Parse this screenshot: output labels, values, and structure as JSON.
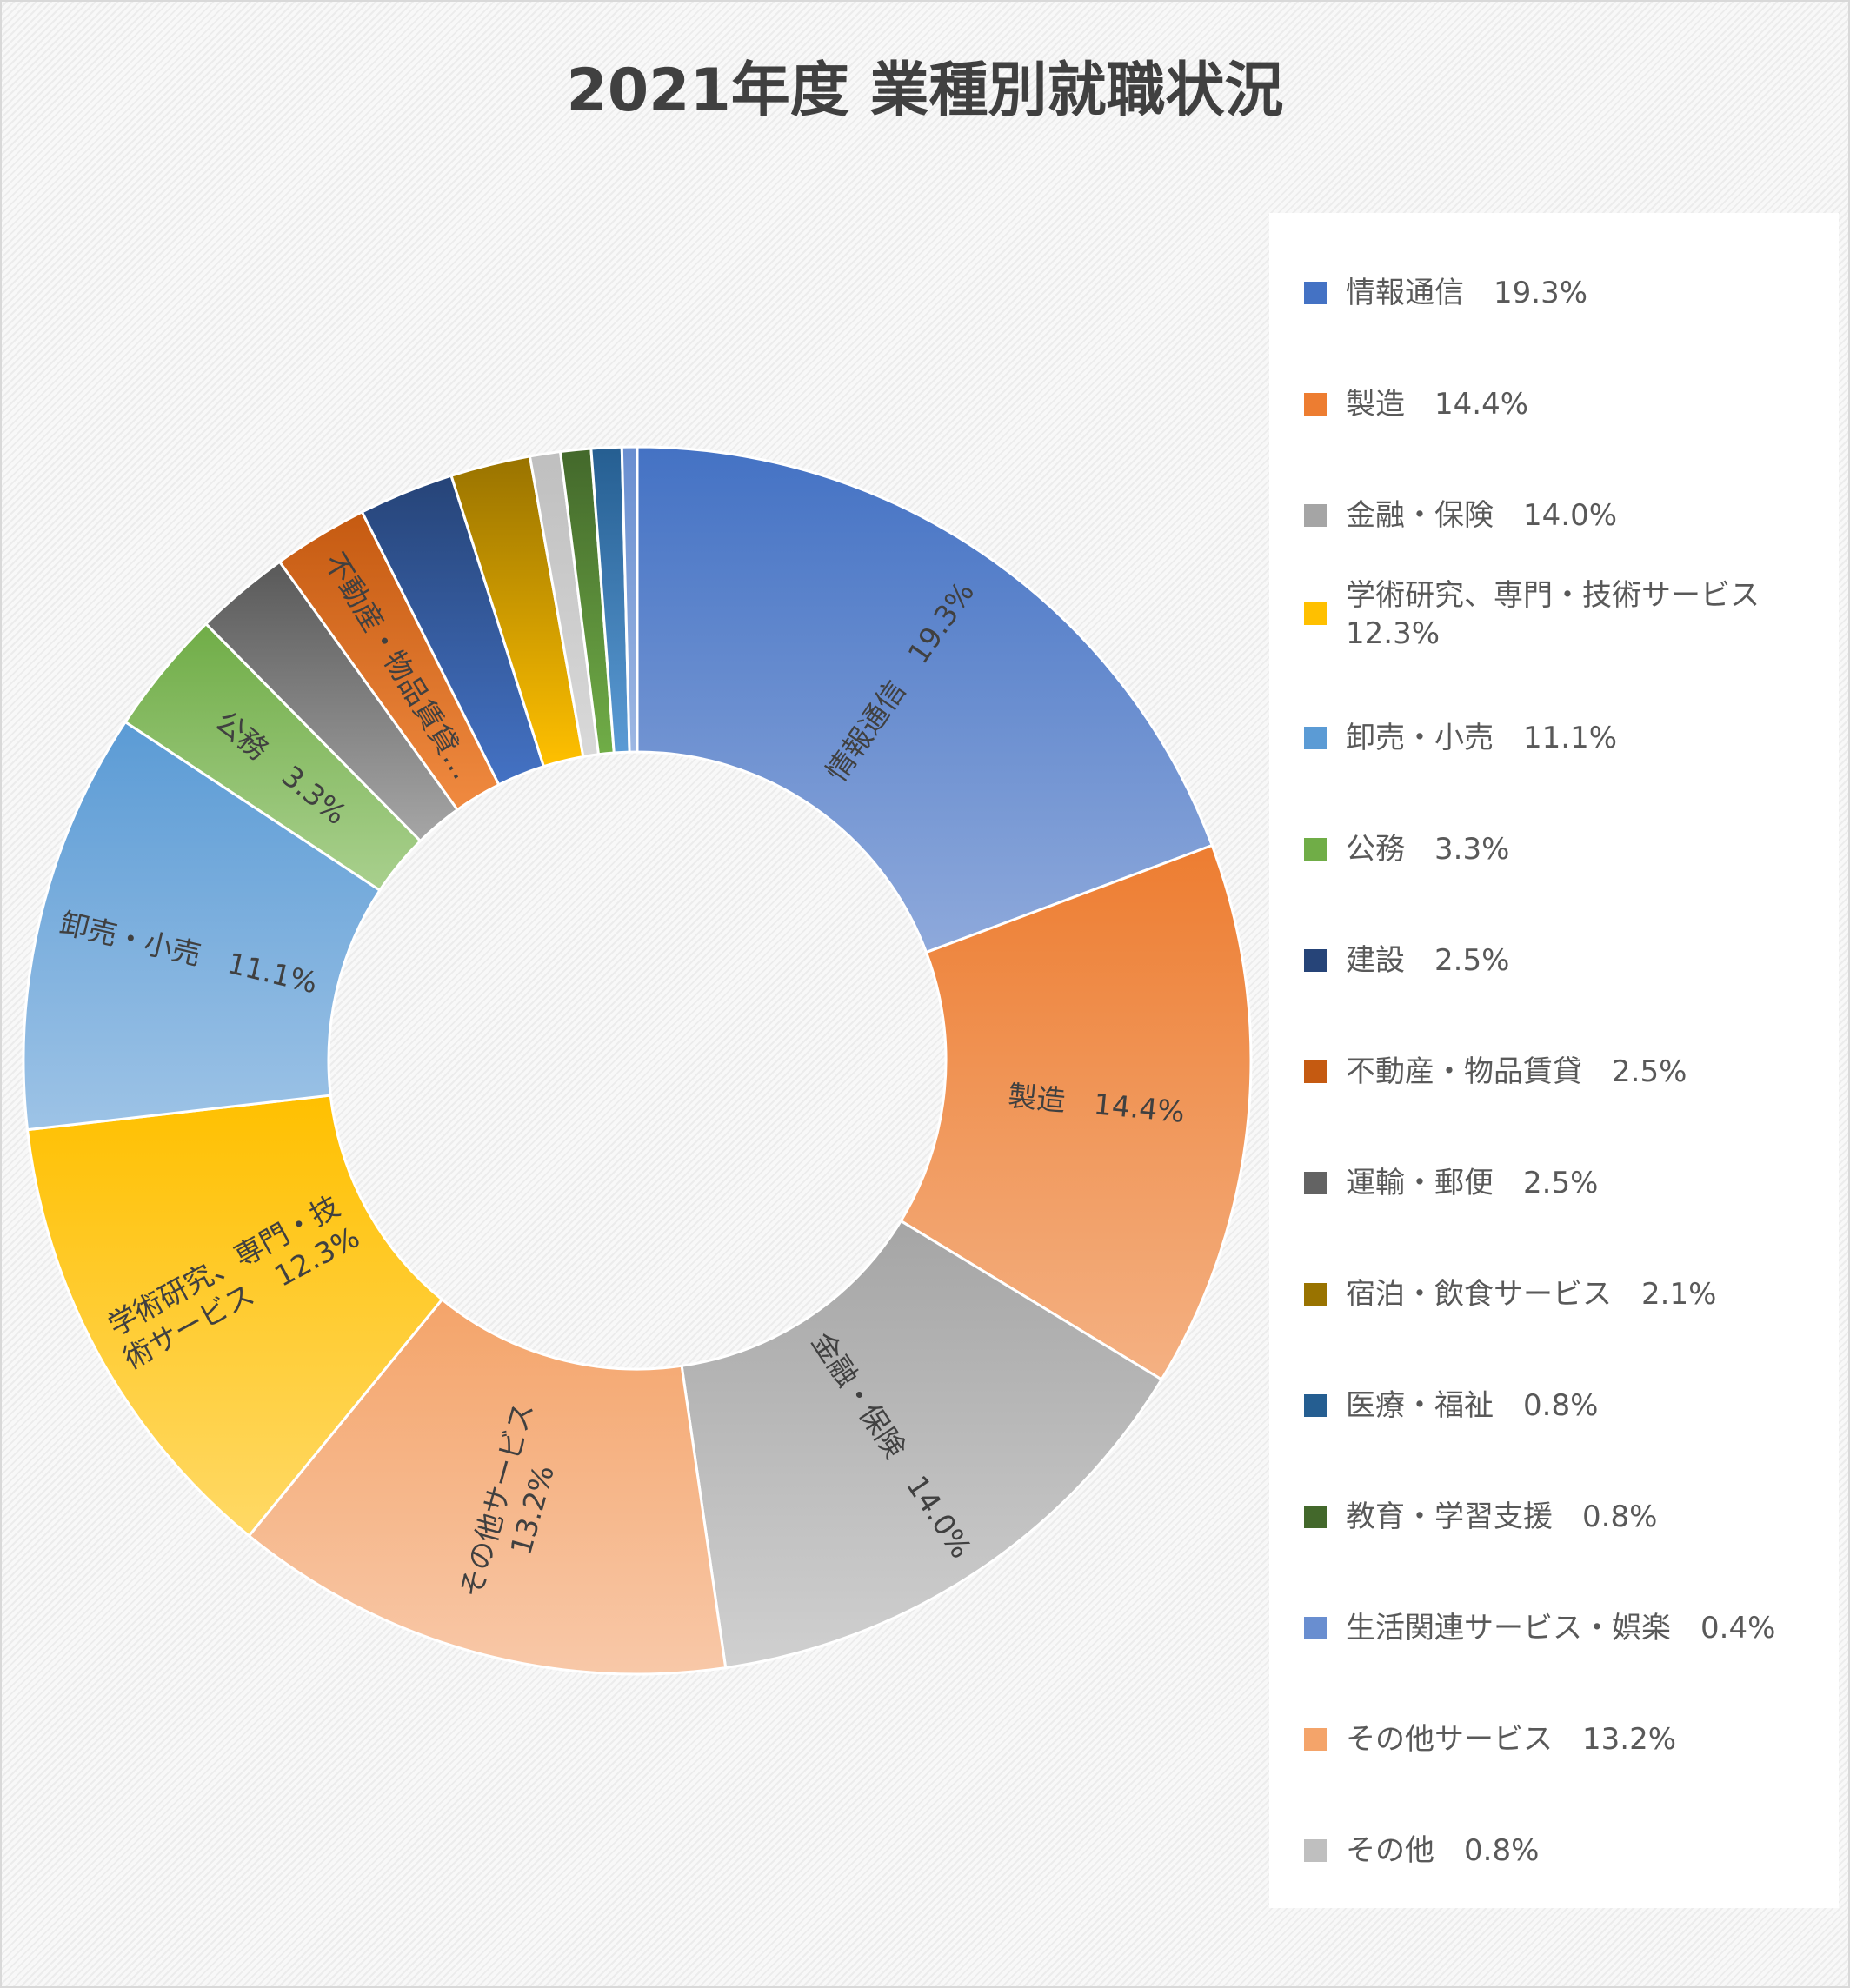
{
  "chart_data": {
    "type": "pie",
    "donut": true,
    "title": "2021年度 業種別就職状況",
    "legend_position": "right",
    "slices": [
      {
        "name": "情報通信",
        "value": 19.3,
        "label": "19.3%",
        "color": "#4472c4",
        "color_light": "#8ea9db"
      },
      {
        "name": "製造",
        "value": 14.4,
        "label": "14.4%",
        "color": "#ed7d31",
        "color_light": "#f4b183"
      },
      {
        "name": "金融・保険",
        "value": 14.0,
        "label": "14.0%",
        "color": "#a5a5a5",
        "color_light": "#d0d0d0"
      },
      {
        "name": "その他サービス",
        "value": 13.2,
        "label": "13.2%",
        "color": "#f4a46a",
        "color_light": "#f8c8a8"
      },
      {
        "name": "学術研究、専門・技術サービス",
        "value": 12.3,
        "label": "12.3%",
        "color": "#ffc000",
        "color_light": "#ffd966"
      },
      {
        "name": "卸売・小売",
        "value": 11.1,
        "label": "11.1%",
        "color": "#5b9bd5",
        "color_light": "#9dc3e6"
      },
      {
        "name": "公務",
        "value": 3.3,
        "label": "3.3%",
        "color": "#70ad47",
        "color_light": "#a9d08e"
      },
      {
        "name": "運輸・郵便",
        "value": 2.5,
        "label": "2.5%",
        "color": "#595959",
        "color_light": "#a6a6a6"
      },
      {
        "name": "不動産・物品賃貸",
        "value": 2.5,
        "label": "2.5%",
        "color": "#c55a11",
        "color_light": "#f08a40"
      },
      {
        "name": "建設",
        "value": 2.5,
        "label": "2.5%",
        "color": "#264478",
        "color_light": "#4472c4"
      },
      {
        "name": "宿泊・飲食サービス",
        "value": 2.1,
        "label": "2.1%",
        "color": "#997300",
        "color_light": "#ffc000"
      },
      {
        "name": "その他",
        "value": 0.8,
        "label": "0.8%",
        "color": "#bfbfbf",
        "color_light": "#d9d9d9"
      },
      {
        "name": "教育・学習支援",
        "value": 0.8,
        "label": "0.8%",
        "color": "#43682b",
        "color_light": "#70ad47"
      },
      {
        "name": "医療・福祉",
        "value": 0.8,
        "label": "0.8%",
        "color": "#255e91",
        "color_light": "#5b9bd5"
      },
      {
        "name": "生活関連サービス・娯楽",
        "value": 0.4,
        "label": "0.4%",
        "color": "#698ed0",
        "color_light": "#9db7e3"
      }
    ],
    "slice_labels": [
      {
        "slice": "情報通信",
        "text": "情報通信　19.3%"
      },
      {
        "slice": "製造",
        "text": "製造　14.4%"
      },
      {
        "slice": "金融・保険",
        "text": "金融・保険　14.0%"
      },
      {
        "slice": "その他サービス",
        "lines": [
          "その他サービス",
          "13.2%"
        ]
      },
      {
        "slice": "学術研究、専門・技術サービス",
        "lines": [
          "学術研究、専門・技",
          "術サービス　12.3%"
        ]
      },
      {
        "slice": "卸売・小売",
        "text": "卸売・小売　11.1%"
      },
      {
        "slice": "公務",
        "text": "公務　3.3%"
      },
      {
        "slice": "不動産・物品賃貸",
        "text": "不動産・物品賃貸…"
      }
    ]
  },
  "legend": {
    "items": [
      {
        "label": "情報通信　19.3%",
        "color": "#4472c4"
      },
      {
        "label": "製造　14.4%",
        "color": "#ed7d31"
      },
      {
        "label": "金融・保険　14.0%",
        "color": "#a5a5a5"
      },
      {
        "label": "学術研究、専門・技術サービス　　　12.3%",
        "color": "#ffc000"
      },
      {
        "label": "卸売・小売　11.1%",
        "color": "#5b9bd5"
      },
      {
        "label": "公務　3.3%",
        "color": "#70ad47"
      },
      {
        "label": "建設　2.5%",
        "color": "#264478"
      },
      {
        "label": "不動産・物品賃貸　2.5%",
        "color": "#c55a11"
      },
      {
        "label": "運輸・郵便　2.5%",
        "color": "#636363"
      },
      {
        "label": "宿泊・飲食サービス　2.1%",
        "color": "#997300"
      },
      {
        "label": "医療・福祉　0.8%",
        "color": "#255e91"
      },
      {
        "label": "教育・学習支援　0.8%",
        "color": "#43682b"
      },
      {
        "label": "生活関連サービス・娯楽　0.4%",
        "color": "#698ed0"
      },
      {
        "label": "その他サービス　13.2%",
        "color": "#f4a46a"
      },
      {
        "label": "その他　0.8%",
        "color": "#bfbfbf"
      }
    ]
  }
}
